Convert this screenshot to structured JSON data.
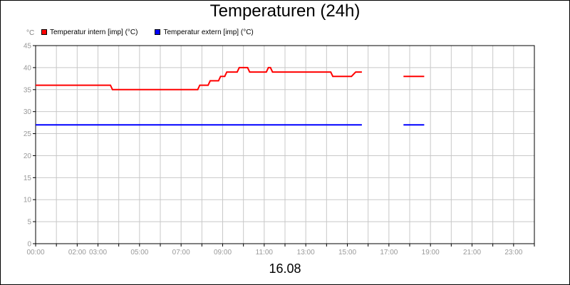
{
  "chart_data": {
    "type": "line",
    "title": "Temperaturen (24h)",
    "xlabel": "16.08",
    "ylabel": "°C",
    "ylim": [
      0,
      45
    ],
    "yticks": [
      0,
      5,
      10,
      15,
      20,
      25,
      30,
      35,
      40,
      45
    ],
    "xlim": [
      0,
      24
    ],
    "xticks": [
      {
        "h": 0,
        "label": "00:00"
      },
      {
        "h": 2,
        "label": "02:00"
      },
      {
        "h": 3,
        "label": "03:00"
      },
      {
        "h": 5,
        "label": "05:00"
      },
      {
        "h": 7,
        "label": "07:00"
      },
      {
        "h": 9,
        "label": "09:00"
      },
      {
        "h": 11,
        "label": "11:00"
      },
      {
        "h": 13,
        "label": "13:00"
      },
      {
        "h": 15,
        "label": "15:00"
      },
      {
        "h": 17,
        "label": "17:00"
      },
      {
        "h": 19,
        "label": "19:00"
      },
      {
        "h": 21,
        "label": "21:00"
      },
      {
        "h": 23,
        "label": "23:00"
      }
    ],
    "grid": true,
    "legend_position": "top-left",
    "series": [
      {
        "name": "Temperatur intern [imp] (°C)",
        "color": "#ff0000",
        "segments": [
          [
            [
              0.0,
              36
            ],
            [
              3.6,
              36
            ],
            [
              3.7,
              35
            ],
            [
              7.8,
              35
            ],
            [
              7.9,
              36
            ],
            [
              8.3,
              36
            ],
            [
              8.4,
              37
            ],
            [
              8.8,
              37
            ],
            [
              8.9,
              38
            ],
            [
              9.1,
              38
            ],
            [
              9.2,
              39
            ],
            [
              9.7,
              39
            ],
            [
              9.8,
              40
            ],
            [
              10.2,
              40
            ],
            [
              10.3,
              39
            ],
            [
              11.1,
              39
            ],
            [
              11.2,
              40
            ],
            [
              11.3,
              40
            ],
            [
              11.4,
              39
            ],
            [
              14.2,
              39
            ],
            [
              14.3,
              38
            ],
            [
              15.2,
              38
            ],
            [
              15.4,
              39
            ],
            [
              15.7,
              39
            ]
          ],
          [
            [
              17.7,
              38
            ],
            [
              18.7,
              38
            ]
          ]
        ]
      },
      {
        "name": "Temperatur extern [imp] (°C)",
        "color": "#0000ff",
        "segments": [
          [
            [
              0.0,
              27
            ],
            [
              15.7,
              27
            ]
          ],
          [
            [
              17.7,
              27
            ],
            [
              18.7,
              27
            ]
          ]
        ]
      }
    ]
  }
}
